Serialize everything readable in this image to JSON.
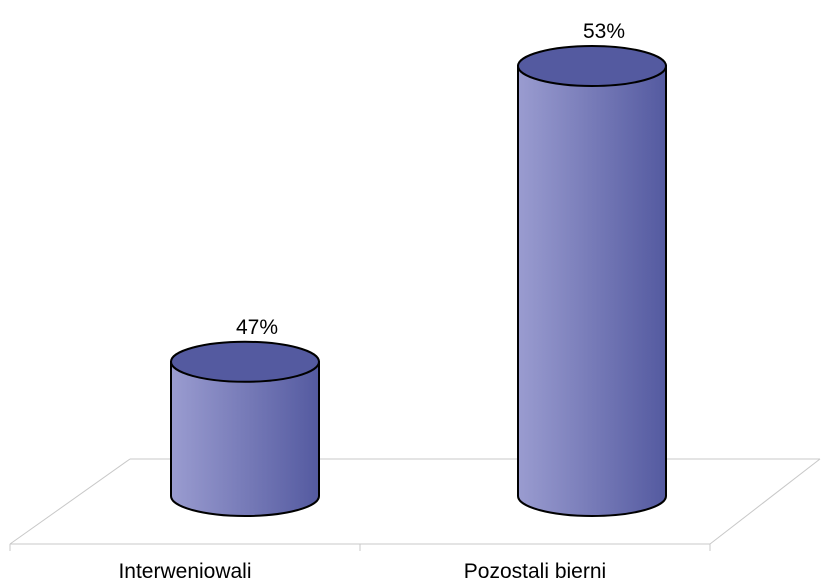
{
  "chart_data": {
    "type": "bar",
    "categories": [
      "Interweniowali",
      "Pozostali bierni"
    ],
    "values": [
      47,
      53
    ],
    "data_labels": [
      "47%",
      "53%"
    ],
    "title": "",
    "xlabel": "",
    "ylabel": "",
    "ylim": [
      0,
      53
    ],
    "grid": false,
    "legend": "none",
    "colors": {
      "bar_light": "#9a9cd0",
      "bar_dark": "#545aa0",
      "outline": "#000000",
      "floor": "#c8c8c8"
    }
  }
}
